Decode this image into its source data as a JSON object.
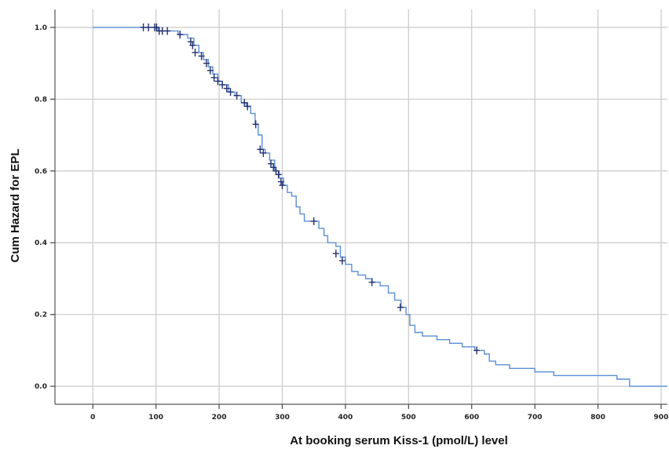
{
  "chart_data": {
    "type": "line",
    "title": "",
    "xlabel": "At booking serum Kiss-1 (pmol/L) level",
    "ylabel": "Cum Hazard for EPL",
    "xlim": [
      -60,
      910
    ],
    "ylim": [
      -0.05,
      1.05
    ],
    "x_ticks": [
      0,
      100,
      200,
      300,
      400,
      500,
      600,
      700,
      800,
      900
    ],
    "x_tick_labels": [
      "0",
      "100",
      "200",
      "300",
      "400",
      "500",
      "600",
      "700",
      "800",
      "900"
    ],
    "y_ticks": [
      0.0,
      0.2,
      0.4,
      0.6,
      0.8,
      1.0
    ],
    "y_tick_labels": [
      "0.0",
      "0.2",
      "0.4",
      "0.6",
      "0.8",
      "1.0"
    ],
    "grid": true,
    "legend": "none",
    "series": [
      {
        "line_color": "#5b8ed6",
        "censor_color": "#23306e",
        "step_points": [
          [
            0,
            1.0
          ],
          [
            95,
            1.0
          ],
          [
            103,
            0.99
          ],
          [
            125,
            0.99
          ],
          [
            135,
            0.98
          ],
          [
            150,
            0.97
          ],
          [
            160,
            0.95
          ],
          [
            168,
            0.93
          ],
          [
            175,
            0.91
          ],
          [
            183,
            0.89
          ],
          [
            190,
            0.87
          ],
          [
            198,
            0.85
          ],
          [
            205,
            0.84
          ],
          [
            215,
            0.82
          ],
          [
            225,
            0.81
          ],
          [
            235,
            0.79
          ],
          [
            243,
            0.78
          ],
          [
            250,
            0.76
          ],
          [
            257,
            0.73
          ],
          [
            262,
            0.7
          ],
          [
            268,
            0.66
          ],
          [
            273,
            0.65
          ],
          [
            280,
            0.63
          ],
          [
            288,
            0.6
          ],
          [
            295,
            0.58
          ],
          [
            302,
            0.56
          ],
          [
            308,
            0.54
          ],
          [
            315,
            0.53
          ],
          [
            322,
            0.5
          ],
          [
            328,
            0.48
          ],
          [
            335,
            0.46
          ],
          [
            348,
            0.46
          ],
          [
            358,
            0.44
          ],
          [
            366,
            0.42
          ],
          [
            372,
            0.4
          ],
          [
            385,
            0.39
          ],
          [
            392,
            0.36
          ],
          [
            400,
            0.34
          ],
          [
            410,
            0.32
          ],
          [
            420,
            0.31
          ],
          [
            432,
            0.3
          ],
          [
            442,
            0.29
          ],
          [
            455,
            0.28
          ],
          [
            468,
            0.26
          ],
          [
            478,
            0.24
          ],
          [
            488,
            0.22
          ],
          [
            496,
            0.2
          ],
          [
            502,
            0.17
          ],
          [
            510,
            0.15
          ],
          [
            522,
            0.14
          ],
          [
            545,
            0.13
          ],
          [
            565,
            0.12
          ],
          [
            585,
            0.11
          ],
          [
            605,
            0.1
          ],
          [
            620,
            0.09
          ],
          [
            628,
            0.07
          ],
          [
            638,
            0.06
          ],
          [
            660,
            0.05
          ],
          [
            700,
            0.04
          ],
          [
            730,
            0.03
          ],
          [
            780,
            0.03
          ],
          [
            830,
            0.02
          ],
          [
            845,
            0.02
          ],
          [
            850,
            0.0
          ],
          [
            910,
            0.0
          ]
        ],
        "censored": [
          [
            80,
            1.0
          ],
          [
            88,
            1.0
          ],
          [
            98,
            1.0
          ],
          [
            101,
            1.0
          ],
          [
            105,
            0.99
          ],
          [
            110,
            0.99
          ],
          [
            118,
            0.99
          ],
          [
            138,
            0.98
          ],
          [
            155,
            0.96
          ],
          [
            158,
            0.95
          ],
          [
            162,
            0.93
          ],
          [
            172,
            0.92
          ],
          [
            180,
            0.9
          ],
          [
            186,
            0.88
          ],
          [
            192,
            0.86
          ],
          [
            198,
            0.85
          ],
          [
            205,
            0.84
          ],
          [
            212,
            0.83
          ],
          [
            218,
            0.82
          ],
          [
            228,
            0.81
          ],
          [
            240,
            0.79
          ],
          [
            245,
            0.78
          ],
          [
            258,
            0.73
          ],
          [
            265,
            0.66
          ],
          [
            270,
            0.65
          ],
          [
            282,
            0.62
          ],
          [
            286,
            0.61
          ],
          [
            290,
            0.6
          ],
          [
            294,
            0.59
          ],
          [
            298,
            0.57
          ],
          [
            300,
            0.56
          ],
          [
            350,
            0.46
          ],
          [
            385,
            0.37
          ],
          [
            395,
            0.35
          ],
          [
            442,
            0.29
          ],
          [
            487,
            0.22
          ],
          [
            608,
            0.1
          ]
        ]
      }
    ]
  }
}
